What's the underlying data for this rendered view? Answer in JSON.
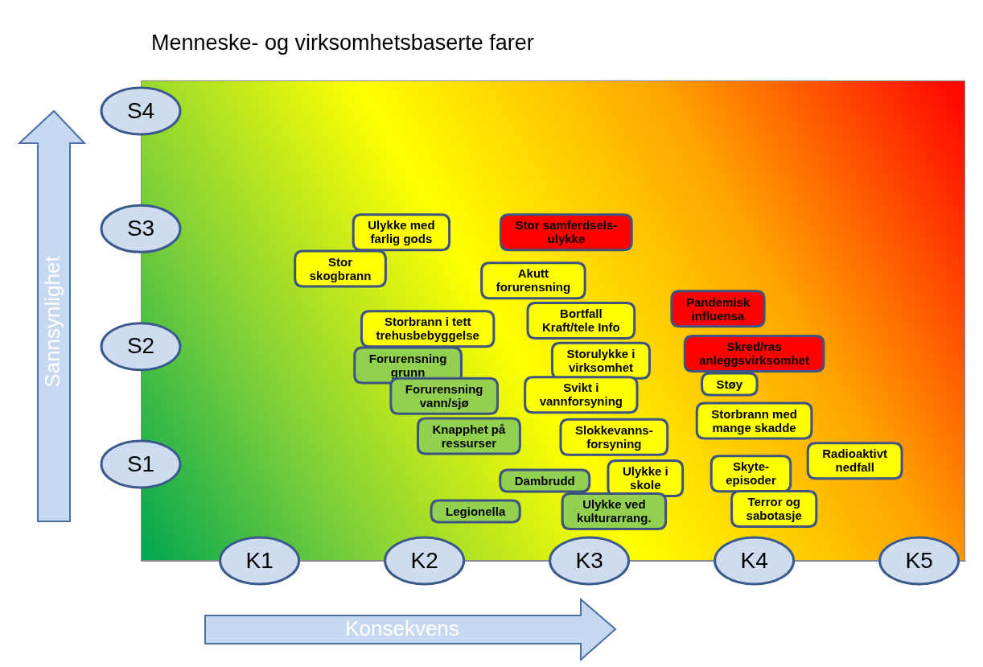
{
  "chart_data": {
    "type": "scatter",
    "title": "Menneske- og virksomhetsbaserte farer",
    "x_label": "Konsekvens",
    "y_label": "Sannsynlighet",
    "xlim": [
      0.28,
      5.28
    ],
    "xticks": [
      {
        "value": 1,
        "label": "K1"
      },
      {
        "value": 2,
        "label": "K2"
      },
      {
        "value": 3,
        "label": "K3"
      },
      {
        "value": 4,
        "label": "K4"
      },
      {
        "value": 5,
        "label": "K5"
      }
    ],
    "ylim": [
      0.18,
      4.26
    ],
    "yticks": [
      {
        "value": 1,
        "label": "S1"
      },
      {
        "value": 2,
        "label": "S2"
      },
      {
        "value": 3,
        "label": "S3"
      },
      {
        "value": 4,
        "label": "S4"
      }
    ],
    "grid": false,
    "point_labels": [
      "Ulykke med\nfarlig gods",
      "Stor samferdsels-\nulykke",
      "Stor\nskogbrann",
      "Akutt\nforurensning",
      "Storbrann i tett\ntrehusbebyggelse",
      "Bortfall\nKraft/tele Info",
      "Pandemisk\ninfluensa",
      "Forurensning\ngrunn",
      "Storulykke i\nvirksomhet",
      "Skred/ras\nanleggsvirksomhet",
      "Forurensning\nvann/sjø",
      "Svikt i\nvannforsyning",
      "Støy",
      "Storbrann med\nmange skadde",
      "Knapphet på\nressurser",
      "Slokkevanns-\nforsyning",
      "Radioaktivt\nnedfall",
      "Dambrudd",
      "Ulykke i\nskole",
      "Skyte-\nepisoder",
      "Legionella",
      "Ulykke ved\nkulturarrang.",
      "Terror og\nsabotasje"
    ],
    "x": [
      1.86,
      2.86,
      1.49,
      2.66,
      2.02,
      2.95,
      3.78,
      1.9,
      3.07,
      4.0,
      2.12,
      2.95,
      3.85,
      4.0,
      2.27,
      3.15,
      4.61,
      2.73,
      3.34,
      3.98,
      2.31,
      3.15,
      4.12
    ],
    "values": [
      2.97,
      2.97,
      2.66,
      2.56,
      2.15,
      2.22,
      2.32,
      1.84,
      1.88,
      1.94,
      1.58,
      1.59,
      1.68,
      1.37,
      1.24,
      1.23,
      1.03,
      0.86,
      0.88,
      0.92,
      0.6,
      0.6,
      0.62
    ],
    "colors": [
      "#ffff00",
      "#ff0000",
      "#ffff00",
      "#ffff00",
      "#ffff00",
      "#ffff00",
      "#ff0000",
      "#92d050",
      "#ffff00",
      "#ff0000",
      "#92d050",
      "#ffff00",
      "#ffff00",
      "#ffff00",
      "#92d050",
      "#ffff00",
      "#ffff00",
      "#92d050",
      "#ffff00",
      "#ffff00",
      "#92d050",
      "#92d050",
      "#ffff00"
    ]
  }
}
